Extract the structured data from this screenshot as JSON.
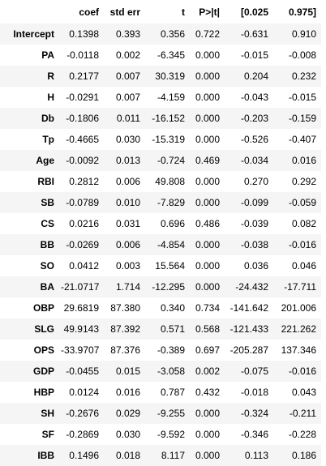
{
  "table": {
    "columns": [
      "",
      "coef",
      "std err",
      "t",
      "P>|t|",
      "[0.025",
      "0.975]"
    ],
    "rows": [
      {
        "label": "Intercept",
        "coef": "0.1398",
        "std_err": "0.393",
        "t": "0.356",
        "p": "0.722",
        "lo": "-0.631",
        "hi": "0.910"
      },
      {
        "label": "PA",
        "coef": "-0.0118",
        "std_err": "0.002",
        "t": "-6.345",
        "p": "0.000",
        "lo": "-0.015",
        "hi": "-0.008"
      },
      {
        "label": "R",
        "coef": "0.2177",
        "std_err": "0.007",
        "t": "30.319",
        "p": "0.000",
        "lo": "0.204",
        "hi": "0.232"
      },
      {
        "label": "H",
        "coef": "-0.0291",
        "std_err": "0.007",
        "t": "-4.159",
        "p": "0.000",
        "lo": "-0.043",
        "hi": "-0.015"
      },
      {
        "label": "Db",
        "coef": "-0.1806",
        "std_err": "0.011",
        "t": "-16.152",
        "p": "0.000",
        "lo": "-0.203",
        "hi": "-0.159"
      },
      {
        "label": "Tp",
        "coef": "-0.4665",
        "std_err": "0.030",
        "t": "-15.319",
        "p": "0.000",
        "lo": "-0.526",
        "hi": "-0.407"
      },
      {
        "label": "Age",
        "coef": "-0.0092",
        "std_err": "0.013",
        "t": "-0.724",
        "p": "0.469",
        "lo": "-0.034",
        "hi": "0.016"
      },
      {
        "label": "RBI",
        "coef": "0.2812",
        "std_err": "0.006",
        "t": "49.808",
        "p": "0.000",
        "lo": "0.270",
        "hi": "0.292"
      },
      {
        "label": "SB",
        "coef": "-0.0789",
        "std_err": "0.010",
        "t": "-7.829",
        "p": "0.000",
        "lo": "-0.099",
        "hi": "-0.059"
      },
      {
        "label": "CS",
        "coef": "0.0216",
        "std_err": "0.031",
        "t": "0.696",
        "p": "0.486",
        "lo": "-0.039",
        "hi": "0.082"
      },
      {
        "label": "BB",
        "coef": "-0.0269",
        "std_err": "0.006",
        "t": "-4.854",
        "p": "0.000",
        "lo": "-0.038",
        "hi": "-0.016"
      },
      {
        "label": "SO",
        "coef": "0.0412",
        "std_err": "0.003",
        "t": "15.564",
        "p": "0.000",
        "lo": "0.036",
        "hi": "0.046"
      },
      {
        "label": "BA",
        "coef": "-21.0717",
        "std_err": "1.714",
        "t": "-12.295",
        "p": "0.000",
        "lo": "-24.432",
        "hi": "-17.711"
      },
      {
        "label": "OBP",
        "coef": "29.6819",
        "std_err": "87.380",
        "t": "0.340",
        "p": "0.734",
        "lo": "-141.642",
        "hi": "201.006"
      },
      {
        "label": "SLG",
        "coef": "49.9143",
        "std_err": "87.392",
        "t": "0.571",
        "p": "0.568",
        "lo": "-121.433",
        "hi": "221.262"
      },
      {
        "label": "OPS",
        "coef": "-33.9707",
        "std_err": "87.376",
        "t": "-0.389",
        "p": "0.697",
        "lo": "-205.287",
        "hi": "137.346"
      },
      {
        "label": "GDP",
        "coef": "-0.0455",
        "std_err": "0.015",
        "t": "-3.058",
        "p": "0.002",
        "lo": "-0.075",
        "hi": "-0.016"
      },
      {
        "label": "HBP",
        "coef": "0.0124",
        "std_err": "0.016",
        "t": "0.787",
        "p": "0.432",
        "lo": "-0.018",
        "hi": "0.043"
      },
      {
        "label": "SH",
        "coef": "-0.2676",
        "std_err": "0.029",
        "t": "-9.255",
        "p": "0.000",
        "lo": "-0.324",
        "hi": "-0.211"
      },
      {
        "label": "SF",
        "coef": "-0.2869",
        "std_err": "0.030",
        "t": "-9.592",
        "p": "0.000",
        "lo": "-0.346",
        "hi": "-0.228"
      },
      {
        "label": "IBB",
        "coef": "0.1496",
        "std_err": "0.018",
        "t": "8.117",
        "p": "0.000",
        "lo": "0.113",
        "hi": "0.186"
      }
    ]
  },
  "colors": {
    "stripe": "#f5f5f5",
    "background": "#ffffff",
    "text": "#000000"
  }
}
